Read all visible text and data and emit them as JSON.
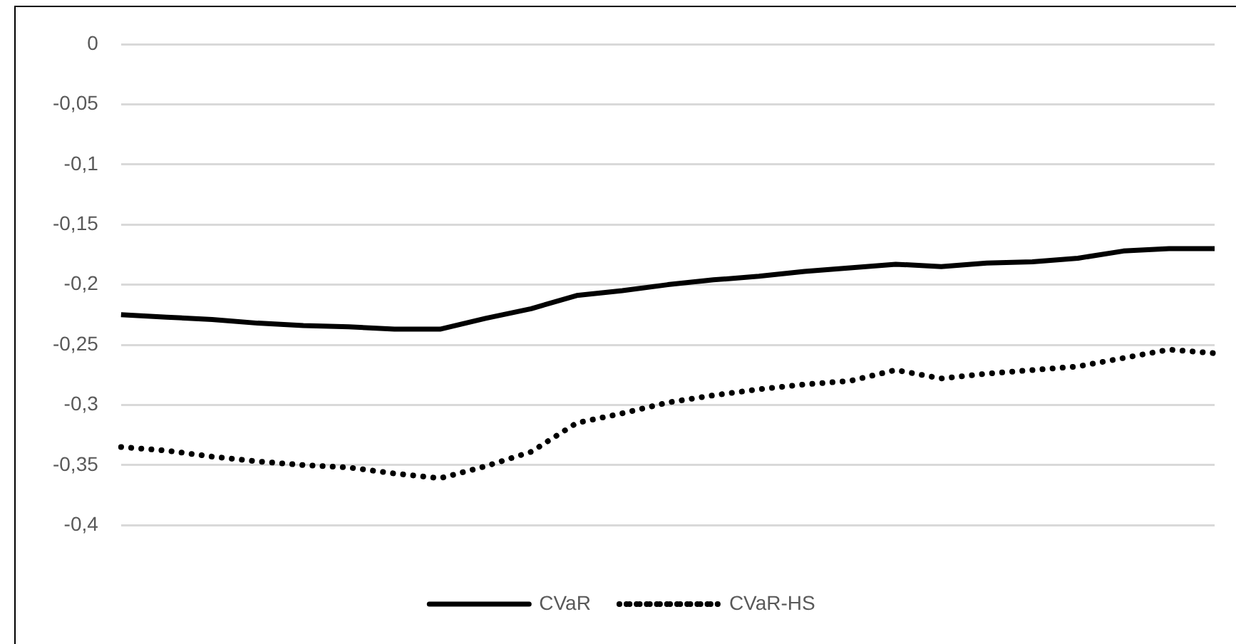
{
  "chart_data": {
    "type": "line",
    "categories": [
      null,
      null,
      null,
      null,
      null,
      null,
      null,
      null,
      null,
      null,
      null,
      null,
      null,
      null,
      null,
      null,
      null,
      null,
      null,
      null,
      null,
      null,
      null,
      null,
      null
    ],
    "series": [
      {
        "name": "CVaR",
        "color": "#000000",
        "line_style": "solid",
        "values": [
          -0.225,
          -0.227,
          -0.229,
          -0.232,
          -0.234,
          -0.235,
          -0.237,
          -0.237,
          -0.228,
          -0.22,
          -0.209,
          -0.205,
          -0.2,
          -0.196,
          -0.193,
          -0.189,
          -0.186,
          -0.183,
          -0.185,
          -0.182,
          -0.181,
          -0.178,
          -0.172,
          -0.17,
          -0.17
        ]
      },
      {
        "name": "CVaR-HS",
        "color": "#000000",
        "line_style": "dotted",
        "values": [
          -0.335,
          -0.338,
          -0.343,
          -0.347,
          -0.35,
          -0.352,
          -0.357,
          -0.361,
          -0.351,
          -0.339,
          -0.315,
          -0.307,
          -0.298,
          -0.292,
          -0.287,
          -0.283,
          -0.28,
          -0.271,
          -0.278,
          -0.274,
          -0.271,
          -0.268,
          -0.261,
          -0.254,
          -0.257
        ]
      }
    ],
    "ylim": [
      -0.4,
      0
    ],
    "yticks": [
      {
        "value": 0,
        "label": "0"
      },
      {
        "value": -0.05,
        "label": "-0,05"
      },
      {
        "value": -0.1,
        "label": "-0,1"
      },
      {
        "value": -0.15,
        "label": "-0,15"
      },
      {
        "value": -0.2,
        "label": "-0,2"
      },
      {
        "value": -0.25,
        "label": "-0,25"
      },
      {
        "value": -0.3,
        "label": "-0,3"
      },
      {
        "value": -0.35,
        "label": "-0,35"
      },
      {
        "value": -0.4,
        "label": "-0,4"
      }
    ],
    "grid": "y",
    "legend": "bottom",
    "marker": "none"
  }
}
